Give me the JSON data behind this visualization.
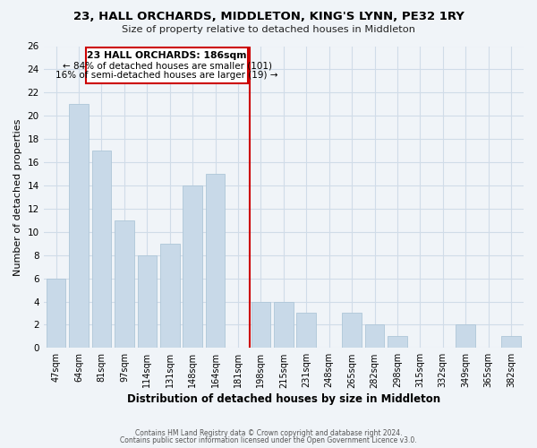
{
  "title": "23, HALL ORCHARDS, MIDDLETON, KING'S LYNN, PE32 1RY",
  "subtitle": "Size of property relative to detached houses in Middleton",
  "xlabel": "Distribution of detached houses by size in Middleton",
  "ylabel": "Number of detached properties",
  "bar_labels": [
    "47sqm",
    "64sqm",
    "81sqm",
    "97sqm",
    "114sqm",
    "131sqm",
    "148sqm",
    "164sqm",
    "181sqm",
    "198sqm",
    "215sqm",
    "231sqm",
    "248sqm",
    "265sqm",
    "282sqm",
    "298sqm",
    "315sqm",
    "332sqm",
    "349sqm",
    "365sqm",
    "382sqm"
  ],
  "bar_values": [
    6,
    21,
    17,
    11,
    8,
    9,
    14,
    15,
    0,
    4,
    4,
    3,
    0,
    3,
    2,
    1,
    0,
    0,
    2,
    0,
    1
  ],
  "bar_color": "#c8d9e8",
  "bar_edge_color": "#aec6d8",
  "vline_x": 8.5,
  "vline_color": "#cc0000",
  "annotation_title": "23 HALL ORCHARDS: 186sqm",
  "annotation_line1": "← 84% of detached houses are smaller (101)",
  "annotation_line2": "16% of semi-detached houses are larger (19) →",
  "annotation_box_color": "#ffffff",
  "annotation_box_edge": "#cc0000",
  "ylim": [
    0,
    26
  ],
  "yticks": [
    0,
    2,
    4,
    6,
    8,
    10,
    12,
    14,
    16,
    18,
    20,
    22,
    24,
    26
  ],
  "footer1": "Contains HM Land Registry data © Crown copyright and database right 2024.",
  "footer2": "Contains public sector information licensed under the Open Government Licence v3.0.",
  "bg_color": "#f0f4f8",
  "grid_color": "#d0dce8"
}
